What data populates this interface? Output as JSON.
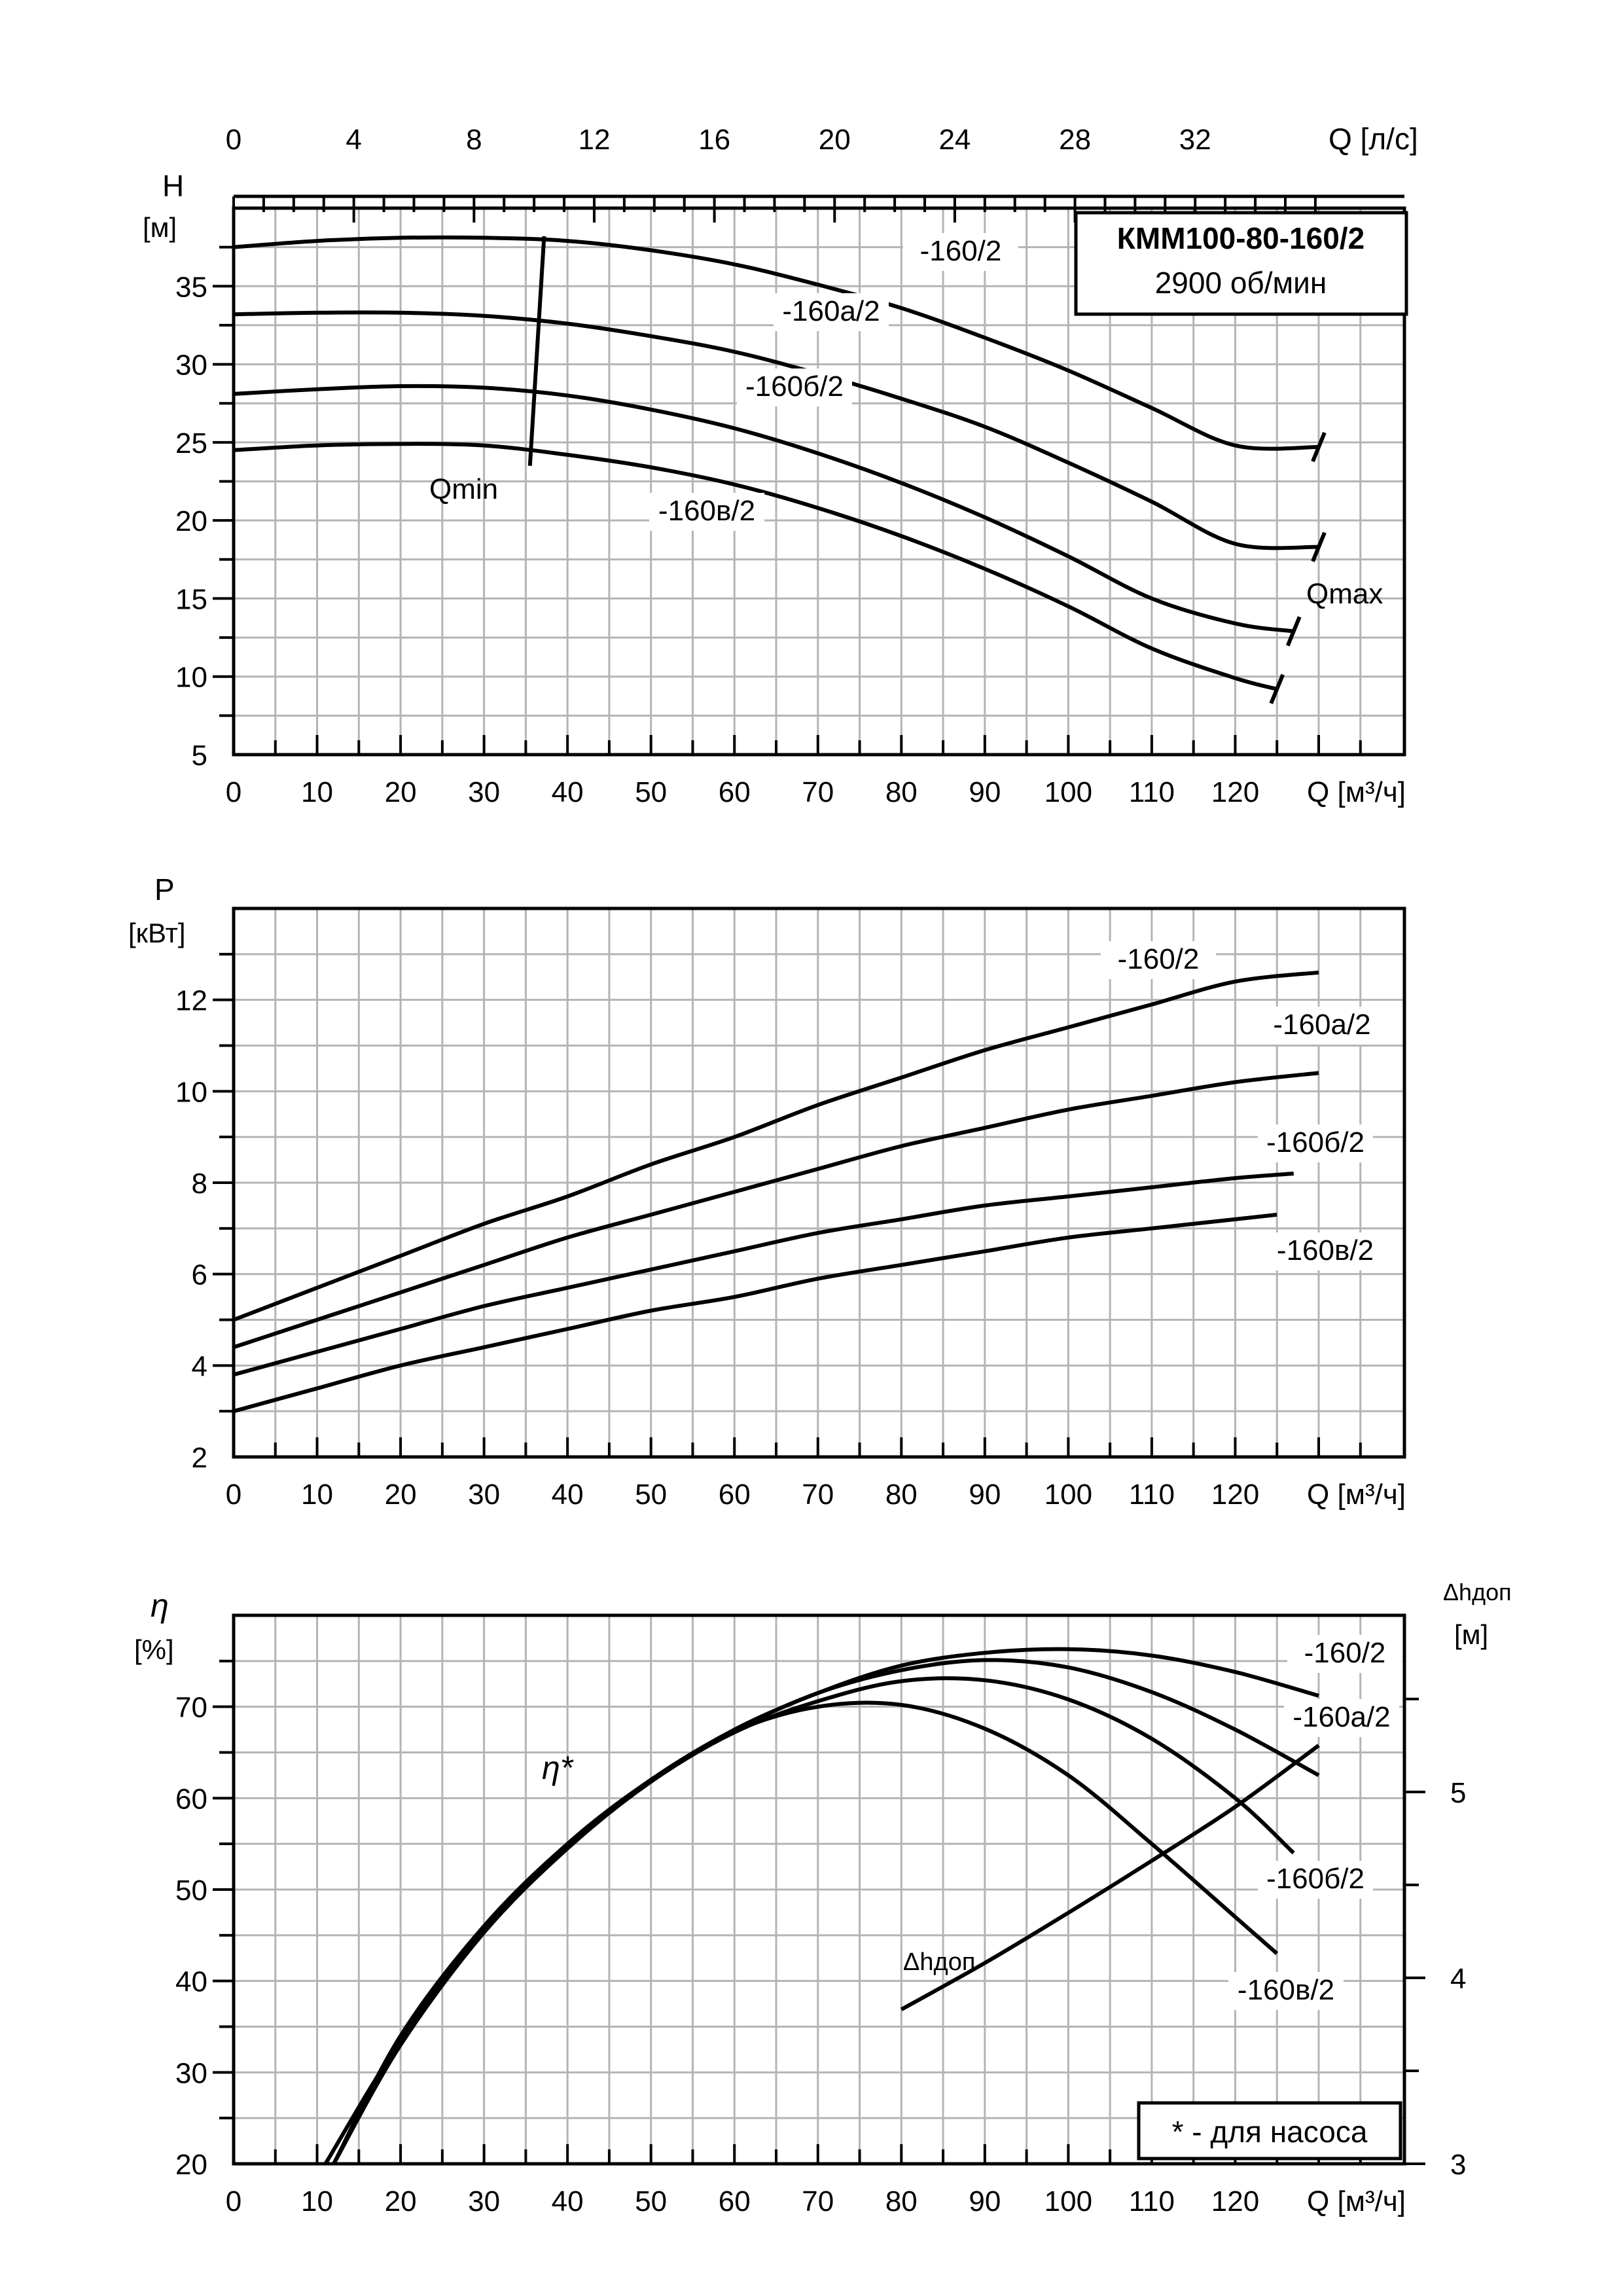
{
  "colors": {
    "line": "#000000",
    "grid": "#b4b4b4",
    "background": "#ffffff"
  },
  "header": {
    "model": "КММ100-80-160/2",
    "speed": "2900 об/мин"
  },
  "top_axis": {
    "label": "Q [л/с]",
    "ticks": [
      "0",
      "4",
      "8",
      "12",
      "16",
      "20",
      "24",
      "28",
      "32"
    ],
    "tick_values": [
      0,
      4,
      8,
      12,
      16,
      20,
      24,
      28,
      32
    ],
    "range": [
      0,
      39
    ]
  },
  "x_axis_label": "Q [м³/ч]",
  "x_ticks": [
    "0",
    "10",
    "20",
    "30",
    "40",
    "50",
    "60",
    "70",
    "80",
    "90",
    "100",
    "110",
    "120"
  ],
  "head_panel": {
    "ylabel_top": "H",
    "ylabel_unit": "[м]",
    "y_ticks": [
      "5",
      "10",
      "15",
      "20",
      "25",
      "30",
      "35"
    ],
    "qmin_label": "Qmin",
    "qmax_label": "Qmax"
  },
  "power_panel": {
    "ylabel_top": "P",
    "ylabel_unit": "[кВт]",
    "y_ticks": [
      "2",
      "4",
      "6",
      "8",
      "10",
      "12"
    ]
  },
  "eff_panel": {
    "ylabel_top": "η",
    "ylabel_unit": "[%]",
    "y_ticks": [
      "20",
      "30",
      "40",
      "50",
      "60",
      "70"
    ],
    "eta_star_label": "η*",
    "npsh_label": "Δhдоп",
    "right_label_top": "Δhдоп",
    "right_label_unit": "[м]",
    "right_ticks": [
      "3",
      "4",
      "5"
    ],
    "note": "* - для насоса"
  },
  "chart_data": [
    {
      "type": "line",
      "title": "КММ100-80-160/2",
      "xlabel": "Q [м³/ч]",
      "ylabel": "H [м]",
      "xlim": [
        0,
        140
      ],
      "ylim": [
        5,
        40
      ],
      "grid": true,
      "series": [
        {
          "name": "-160/2",
          "x": [
            0,
            10,
            20,
            30,
            40,
            50,
            60,
            70,
            80,
            90,
            100,
            110,
            120,
            130
          ],
          "y": [
            37.5,
            37.9,
            38.1,
            38.1,
            37.9,
            37.3,
            36.4,
            35.1,
            33.6,
            31.7,
            29.6,
            27.2,
            24.8,
            24.7
          ]
        },
        {
          "name": "-160а/2",
          "x": [
            0,
            10,
            20,
            30,
            40,
            50,
            60,
            70,
            80,
            90,
            100,
            110,
            120,
            130
          ],
          "y": [
            33.2,
            33.3,
            33.3,
            33.1,
            32.6,
            31.8,
            30.8,
            29.4,
            27.8,
            26.0,
            23.7,
            21.2,
            18.5,
            18.3
          ]
        },
        {
          "name": "-160б/2",
          "x": [
            0,
            10,
            20,
            30,
            40,
            50,
            60,
            70,
            80,
            90,
            100,
            110,
            120,
            127
          ],
          "y": [
            28.1,
            28.4,
            28.6,
            28.5,
            28.0,
            27.1,
            25.9,
            24.3,
            22.4,
            20.2,
            17.7,
            15.0,
            13.4,
            12.9
          ]
        },
        {
          "name": "-160в/2",
          "x": [
            0,
            10,
            20,
            30,
            40,
            50,
            60,
            70,
            80,
            90,
            100,
            110,
            120,
            125
          ],
          "y": [
            24.5,
            24.8,
            24.9,
            24.8,
            24.2,
            23.4,
            22.3,
            20.8,
            19.0,
            16.9,
            14.5,
            11.8,
            9.9,
            9.2
          ]
        }
      ],
      "annotations": {
        "qmin": [
          35.5,
          23.5,
          37.2,
          38.2
        ]
      }
    },
    {
      "type": "line",
      "xlabel": "Q [м³/ч]",
      "ylabel": "P [кВт]",
      "xlim": [
        0,
        140
      ],
      "ylim": [
        2,
        14
      ],
      "grid": true,
      "series": [
        {
          "name": "-160/2",
          "x": [
            0,
            10,
            20,
            30,
            40,
            50,
            60,
            70,
            80,
            90,
            100,
            110,
            120,
            130
          ],
          "y": [
            5.0,
            5.7,
            6.4,
            7.1,
            7.7,
            8.4,
            9.0,
            9.7,
            10.3,
            10.9,
            11.4,
            11.9,
            12.4,
            12.6
          ]
        },
        {
          "name": "-160а/2",
          "x": [
            0,
            10,
            20,
            30,
            40,
            50,
            60,
            70,
            80,
            90,
            100,
            110,
            120,
            130
          ],
          "y": [
            4.4,
            5.0,
            5.6,
            6.2,
            6.8,
            7.3,
            7.8,
            8.3,
            8.8,
            9.2,
            9.6,
            9.9,
            10.2,
            10.4
          ]
        },
        {
          "name": "-160б/2",
          "x": [
            0,
            10,
            20,
            30,
            40,
            50,
            60,
            70,
            80,
            90,
            100,
            110,
            120,
            127
          ],
          "y": [
            3.8,
            4.3,
            4.8,
            5.3,
            5.7,
            6.1,
            6.5,
            6.9,
            7.2,
            7.5,
            7.7,
            7.9,
            8.1,
            8.2
          ]
        },
        {
          "name": "-160в/2",
          "x": [
            0,
            10,
            20,
            30,
            40,
            50,
            60,
            70,
            80,
            90,
            100,
            110,
            120,
            125
          ],
          "y": [
            3.0,
            3.5,
            4.0,
            4.4,
            4.8,
            5.2,
            5.5,
            5.9,
            6.2,
            6.5,
            6.8,
            7.0,
            7.2,
            7.3
          ]
        }
      ]
    },
    {
      "type": "line",
      "xlabel": "Q [м³/ч]",
      "ylabel": "η [%]",
      "xlim": [
        0,
        140
      ],
      "ylim": [
        20,
        80
      ],
      "y2label": "Δhдоп [м]",
      "y2lim": [
        3,
        5.95
      ],
      "grid": true,
      "series": [
        {
          "name": "-160/2",
          "x": [
            12,
            20,
            30,
            40,
            50,
            60,
            70,
            80,
            90,
            100,
            110,
            120,
            130
          ],
          "y": [
            20,
            34,
            46,
            55,
            62,
            67.5,
            71.5,
            74.5,
            75.9,
            76.3,
            75.6,
            73.8,
            71.2
          ]
        },
        {
          "name": "-160а/2",
          "x": [
            12,
            20,
            30,
            40,
            50,
            60,
            70,
            80,
            90,
            100,
            110,
            120,
            130
          ],
          "y": [
            20,
            33.5,
            45.7,
            55,
            62,
            67.4,
            71.5,
            74,
            75.1,
            74.3,
            71.6,
            67.5,
            62.5
          ]
        },
        {
          "name": "-160б/2",
          "x": [
            12,
            20,
            30,
            40,
            50,
            60,
            70,
            80,
            90,
            100,
            110,
            120,
            127
          ],
          "y": [
            20,
            33,
            45.3,
            54.5,
            61.8,
            67.2,
            70.6,
            72.8,
            72.9,
            70.8,
            66.5,
            60,
            54
          ]
        },
        {
          "name": "-160в/2",
          "x": [
            11,
            20,
            30,
            40,
            50,
            60,
            70,
            80,
            90,
            100,
            110,
            120,
            125
          ],
          "y": [
            20,
            33.5,
            45.5,
            54.7,
            62,
            67.3,
            70,
            70.2,
            67.6,
            62.5,
            55,
            47,
            43
          ]
        },
        {
          "name": "Δhдоп",
          "axis": "right",
          "x": [
            80,
            90,
            100,
            110,
            120,
            130
          ],
          "y": [
            3.83,
            4.08,
            4.35,
            4.63,
            4.92,
            5.25
          ]
        }
      ]
    }
  ]
}
